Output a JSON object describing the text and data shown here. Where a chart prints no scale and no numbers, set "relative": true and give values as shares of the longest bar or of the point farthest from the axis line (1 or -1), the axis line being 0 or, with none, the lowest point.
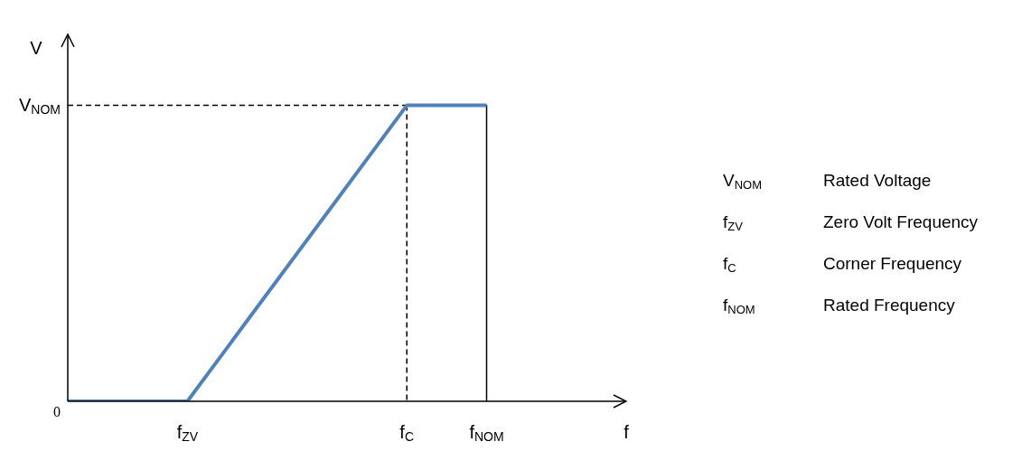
{
  "chart_data": {
    "type": "line",
    "xlabel": "f",
    "ylabel": "V",
    "relative": true,
    "categories": [
      null,
      null,
      null,
      null,
      null,
      null,
      "f$_{ZV}$",
      null,
      null,
      null,
      null,
      null,
      null,
      null,
      null,
      null,
      null,
      "f$_{C}$",
      null,
      null,
      null,
      "f$_{NOM}$",
      null,
      null,
      null,
      null,
      null,
      null,
      null
    ],
    "series": [
      {
        "color": "#4f81bd",
        "values": [
          0,
          null,
          null,
          null,
          null,
          null,
          0,
          null,
          null,
          null,
          null,
          null,
          null,
          null,
          null,
          null,
          null,
          1,
          null,
          null,
          null,
          1,
          null,
          null,
          null,
          null,
          null,
          null,
          null
        ]
      },
      {
        "color": "#000000",
        "line_style": "dashed",
        "values": [
          1,
          null,
          null,
          null,
          null,
          null,
          null,
          null,
          null,
          null,
          null,
          null,
          null,
          null,
          null,
          null,
          null,
          1,
          null,
          null,
          null,
          null,
          null,
          null,
          null,
          null,
          null,
          null,
          null
        ]
      },
      {
        "color": "#000000",
        "line_style": "dashed",
        "x": [
          "f$_{C}$",
          "f$_{C}$"
        ],
        "values": [
          1,
          0
        ]
      },
      {
        "color": "#000000",
        "x": [
          "f$_{NOM}$",
          "f$_{NOM}$"
        ],
        "values": [
          1,
          0
        ]
      }
    ],
    "annotations": [
      "V$_{NOM}$",
      "0",
      "V$_{NOM}$ Rated Voltage",
      "f$_{ZV}$ Zero Volt Frequency",
      "f$_{C}$ Corner Frequency",
      "f$_{NOM}$ Rated Frequency"
    ]
  }
}
